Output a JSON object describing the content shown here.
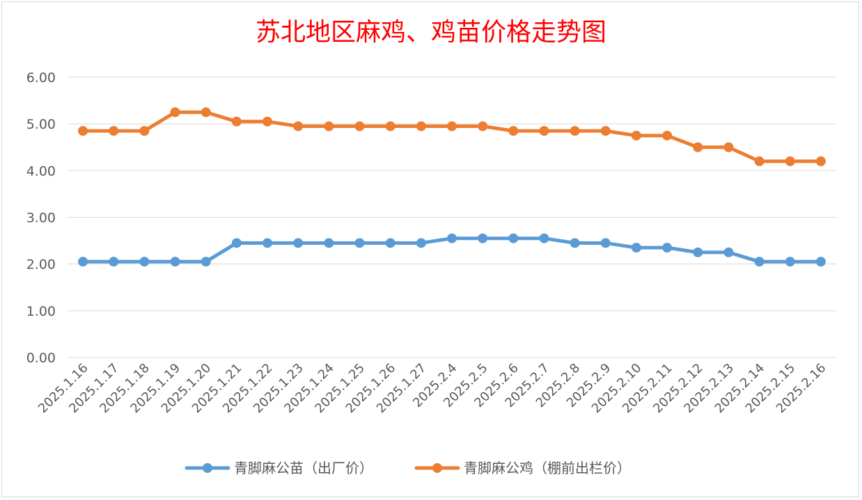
{
  "chart_data": {
    "type": "line",
    "title": "苏北地区麻鸡、鸡苗价格走势图",
    "xlabel": "",
    "ylabel": "",
    "ylim": [
      0,
      6
    ],
    "y_ticks": [
      "0.00",
      "1.00",
      "2.00",
      "3.00",
      "4.00",
      "5.00",
      "6.00"
    ],
    "grid": true,
    "legend_position": "bottom",
    "categories": [
      "2025.1.16",
      "2025.1.17",
      "2025.1.18",
      "2025.1.19",
      "2025.1.20",
      "2025.1.21",
      "2025.1.22",
      "2025.1.23",
      "2025.1.24",
      "2025.1.25",
      "2025.1.26",
      "2025.1.27",
      "2025.2.4",
      "2025.2.5",
      "2025.2.6",
      "2025.2.7",
      "2025.2.8",
      "2025.2.9",
      "2025.2.10",
      "2025.2.11",
      "2025.2.12",
      "2025.2.13",
      "2025.2.14",
      "2025.2.15",
      "2025.2.16"
    ],
    "series": [
      {
        "name": "青脚麻公苗（出厂价）",
        "color": "#5b9bd5",
        "values": [
          2.05,
          2.05,
          2.05,
          2.05,
          2.05,
          2.45,
          2.45,
          2.45,
          2.45,
          2.45,
          2.45,
          2.45,
          2.55,
          2.55,
          2.55,
          2.55,
          2.45,
          2.45,
          2.35,
          2.35,
          2.25,
          2.25,
          2.05,
          2.05,
          2.05
        ]
      },
      {
        "name": "青脚麻公鸡（棚前出栏价）",
        "color": "#ed7d31",
        "values": [
          4.85,
          4.85,
          4.85,
          5.25,
          5.25,
          5.05,
          5.05,
          4.95,
          4.95,
          4.95,
          4.95,
          4.95,
          4.95,
          4.95,
          4.85,
          4.85,
          4.85,
          4.85,
          4.75,
          4.75,
          4.5,
          4.5,
          4.2,
          4.2,
          4.2
        ]
      }
    ]
  }
}
